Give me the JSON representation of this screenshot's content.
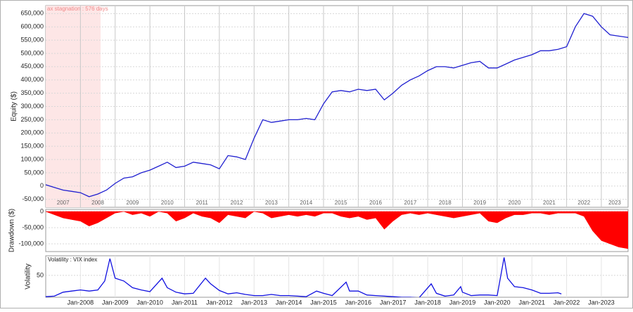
{
  "chart_data": [
    {
      "type": "line",
      "y_label": "Equity ($)",
      "color": "#2020d0",
      "grid": true,
      "xlim": [
        2007,
        2023.77
      ],
      "ylim": [
        -80000,
        680000
      ],
      "yticks": [
        {
          "value": -50000,
          "label": "-50,000"
        },
        0,
        {
          "value": 50000,
          "label": "50,000"
        },
        {
          "value": 100000,
          "label": "100,000"
        },
        {
          "value": 150000,
          "label": "150,000"
        },
        {
          "value": 200000,
          "label": "200,000"
        },
        {
          "value": 250000,
          "label": "250,000"
        },
        {
          "value": 300000,
          "label": "300,000"
        },
        {
          "value": 350000,
          "label": "350,000"
        },
        {
          "value": 400000,
          "label": "400,000"
        },
        {
          "value": 450000,
          "label": "450,000"
        },
        {
          "value": 500000,
          "label": "500,000"
        },
        {
          "value": 550000,
          "label": "550,000"
        },
        {
          "value": 600000,
          "label": "600,000"
        },
        {
          "value": 650000,
          "label": "650,000"
        }
      ],
      "xticks": [
        {
          "value": 2007.5,
          "label": "2007"
        },
        {
          "value": 2008.5,
          "label": "2008"
        },
        {
          "value": 2009.5,
          "label": "2009"
        },
        {
          "value": 2010.5,
          "label": "2010"
        },
        {
          "value": 2011.5,
          "label": "2011"
        },
        {
          "value": 2012.5,
          "label": "2012"
        },
        {
          "value": 2013.5,
          "label": "2013"
        },
        {
          "value": 2014.5,
          "label": "2014"
        },
        {
          "value": 2015.5,
          "label": "2015"
        },
        {
          "value": 2016.5,
          "label": "2016"
        },
        {
          "value": 2017.5,
          "label": "2017"
        },
        {
          "value": 2018.5,
          "label": "2018"
        },
        {
          "value": 2019.5,
          "label": "2019"
        },
        {
          "value": 2020.5,
          "label": "2020"
        },
        {
          "value": 2021.5,
          "label": "2021"
        },
        {
          "value": 2022.5,
          "label": "2022"
        },
        {
          "value": 2023.385,
          "label": "2023"
        }
      ],
      "xgrid": [
        2008,
        2009,
        2010,
        2011,
        2012,
        2013,
        2014,
        2015,
        2016,
        2017,
        2018,
        2019,
        2020,
        2021,
        2022,
        2023
      ],
      "stagnation": {
        "label": "ax stagnation : 576 days",
        "start": 2007,
        "end": 2008.58,
        "color": "#fde6e6"
      },
      "x": [
        2007,
        2007.25,
        2007.5,
        2007.75,
        2008,
        2008.25,
        2008.5,
        2008.75,
        2009,
        2009.25,
        2009.5,
        2009.75,
        2010,
        2010.25,
        2010.5,
        2010.75,
        2011,
        2011.25,
        2011.5,
        2011.75,
        2012,
        2012.25,
        2012.5,
        2012.75,
        2013,
        2013.25,
        2013.5,
        2013.75,
        2014,
        2014.25,
        2014.5,
        2014.75,
        2015,
        2015.25,
        2015.5,
        2015.75,
        2016,
        2016.25,
        2016.5,
        2016.75,
        2017,
        2017.25,
        2017.5,
        2017.75,
        2018,
        2018.25,
        2018.5,
        2018.75,
        2019,
        2019.25,
        2019.5,
        2019.75,
        2020,
        2020.25,
        2020.5,
        2020.75,
        2021,
        2021.25,
        2021.5,
        2021.75,
        2022,
        2022.25,
        2022.5,
        2022.75,
        2023,
        2023.25,
        2023.5,
        2023.77
      ],
      "values": [
        5000,
        -5000,
        -15000,
        -20000,
        -25000,
        -40000,
        -30000,
        -15000,
        10000,
        30000,
        35000,
        50000,
        60000,
        75000,
        90000,
        70000,
        75000,
        90000,
        85000,
        80000,
        65000,
        115000,
        110000,
        100000,
        180000,
        250000,
        240000,
        245000,
        250000,
        250000,
        255000,
        250000,
        310000,
        355000,
        360000,
        355000,
        365000,
        360000,
        365000,
        325000,
        350000,
        380000,
        400000,
        415000,
        435000,
        450000,
        450000,
        445000,
        455000,
        465000,
        470000,
        445000,
        445000,
        460000,
        475000,
        485000,
        495000,
        510000,
        510000,
        515000,
        525000,
        600000,
        650000,
        640000,
        600000,
        570000,
        565000,
        560000
      ]
    },
    {
      "type": "area",
      "y_label": "Drawdown ($)",
      "color": "#ff0000",
      "grid": true,
      "xlim": [
        2007,
        2023.77
      ],
      "ylim": [
        -124000,
        6500
      ],
      "yticks": [
        0,
        {
          "value": -50000,
          "label": "-50,000"
        },
        {
          "value": -100000,
          "label": "-100,000"
        }
      ],
      "x": [
        2007,
        2007.25,
        2007.5,
        2007.75,
        2008,
        2008.25,
        2008.5,
        2008.75,
        2009,
        2009.25,
        2009.5,
        2009.75,
        2010,
        2010.25,
        2010.5,
        2010.75,
        2011,
        2011.25,
        2011.5,
        2011.75,
        2012,
        2012.25,
        2012.5,
        2012.75,
        2013,
        2013.25,
        2013.5,
        2013.75,
        2014,
        2014.25,
        2014.5,
        2014.75,
        2015,
        2015.25,
        2015.5,
        2015.75,
        2016,
        2016.25,
        2016.5,
        2016.75,
        2017,
        2017.25,
        2017.5,
        2017.75,
        2018,
        2018.25,
        2018.5,
        2018.75,
        2019,
        2019.25,
        2019.5,
        2019.75,
        2020,
        2020.25,
        2020.5,
        2020.75,
        2021,
        2021.25,
        2021.5,
        2021.75,
        2022,
        2022.25,
        2022.5,
        2022.75,
        2023,
        2023.25,
        2023.5,
        2023.77
      ],
      "values": [
        0,
        -10000,
        -20000,
        -25000,
        -30000,
        -45000,
        -35000,
        -20000,
        -5000,
        0,
        -10000,
        -5000,
        -15000,
        0,
        -5000,
        -30000,
        -20000,
        -5000,
        -15000,
        -20000,
        -35000,
        -10000,
        -15000,
        -20000,
        0,
        -5000,
        -20000,
        -15000,
        -10000,
        -15000,
        -10000,
        -15000,
        -5000,
        -5000,
        -15000,
        -20000,
        -15000,
        -25000,
        -20000,
        -55000,
        -30000,
        -10000,
        -5000,
        -10000,
        -5000,
        -10000,
        -15000,
        -20000,
        -15000,
        -10000,
        -5000,
        -30000,
        -35000,
        -20000,
        -10000,
        -10000,
        -5000,
        -5000,
        -10000,
        -5000,
        -5000,
        -5000,
        -15000,
        -60000,
        -90000,
        -100000,
        -110000,
        -115000
      ]
    },
    {
      "type": "line",
      "y_label": "Volatility",
      "legend": "Volatility : VIX index",
      "color": "#1010e0",
      "grid": true,
      "xlim": [
        2007,
        2023.77
      ],
      "ylim": [
        11,
        85
      ],
      "yticks": [
        50
      ],
      "xticks": [
        {
          "value": 2008,
          "label": "Jan-2008"
        },
        {
          "value": 2009,
          "label": "Jan-2009"
        },
        {
          "value": 2010,
          "label": "Jan-2010"
        },
        {
          "value": 2011,
          "label": "Jan-2011"
        },
        {
          "value": 2012,
          "label": "Jan-2012"
        },
        {
          "value": 2013,
          "label": "Jan-2013"
        },
        {
          "value": 2014,
          "label": "Jan-2014"
        },
        {
          "value": 2015,
          "label": "Jan-2015"
        },
        {
          "value": 2016,
          "label": "Jan-2016"
        },
        {
          "value": 2017,
          "label": "Jan-2017"
        },
        {
          "value": 2018,
          "label": "Jan-2018"
        },
        {
          "value": 2019,
          "label": "Jan-2019"
        },
        {
          "value": 2020,
          "label": "Jan-2020"
        },
        {
          "value": 2021,
          "label": "Jan-2021"
        },
        {
          "value": 2022,
          "label": "Jan-2022"
        },
        {
          "value": 2023,
          "label": "Jan-2023"
        }
      ],
      "x": [
        2007,
        2007.25,
        2007.5,
        2007.75,
        2008,
        2008.25,
        2008.5,
        2008.7,
        2008.85,
        2009,
        2009.25,
        2009.5,
        2009.75,
        2010,
        2010.35,
        2010.5,
        2010.75,
        2011,
        2011.25,
        2011.6,
        2011.75,
        2012,
        2012.25,
        2012.5,
        2012.75,
        2013,
        2013.25,
        2013.5,
        2013.75,
        2014,
        2014.25,
        2014.5,
        2014.8,
        2015,
        2015.25,
        2015.65,
        2015.75,
        2016,
        2016.25,
        2016.5,
        2016.75,
        2017,
        2017.25,
        2017.5,
        2017.75,
        2018.1,
        2018.25,
        2018.5,
        2018.75,
        2018.95,
        2019,
        2019.25,
        2019.5,
        2019.75,
        2020,
        2020.2,
        2020.3,
        2020.5,
        2020.75,
        2021,
        2021.25,
        2021.5,
        2021.75,
        2021.85
      ],
      "values": [
        12,
        13,
        20,
        22,
        24,
        22,
        24,
        40,
        80,
        45,
        40,
        28,
        24,
        21,
        45,
        28,
        20,
        17,
        18,
        45,
        35,
        23,
        17,
        19,
        16,
        14,
        14,
        16,
        14,
        14,
        13,
        12,
        22,
        18,
        14,
        38,
        22,
        22,
        15,
        14,
        13,
        12,
        11,
        11,
        10,
        35,
        18,
        13,
        15,
        30,
        20,
        14,
        15,
        15,
        14,
        82,
        45,
        30,
        28,
        24,
        18,
        18,
        19,
        17
      ]
    }
  ]
}
